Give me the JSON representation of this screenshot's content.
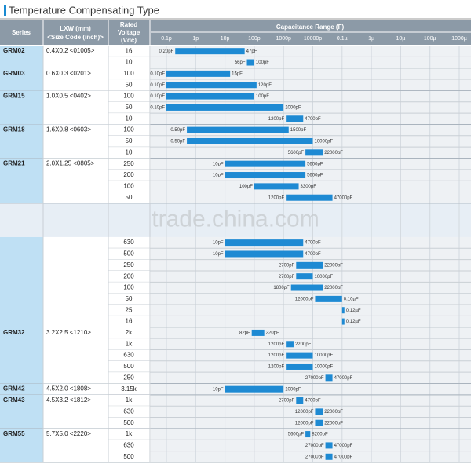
{
  "title": "Temperature Compensating Type",
  "watermark": "trade.china.com",
  "header": {
    "series": "Series",
    "lxw": "LXW (mm)",
    "size_code": "<Size Code (inch)>",
    "voltage": [
      "Rated",
      "Voltage",
      "(Vdc)"
    ],
    "capacitance": "Capacitance Range (F)"
  },
  "axis": {
    "ticks": [
      {
        "value": 0.1,
        "label": "0.1p"
      },
      {
        "value": 1,
        "label": "1p"
      },
      {
        "value": 10,
        "label": "10p"
      },
      {
        "value": 100,
        "label": "100p"
      },
      {
        "value": 1000,
        "label": "1000p"
      },
      {
        "value": 10000,
        "label": "10000p"
      },
      {
        "value": 100000,
        "label": "0.1µ"
      },
      {
        "value": 1000000,
        "label": "1µ"
      },
      {
        "value": 10000000,
        "label": "10µ"
      },
      {
        "value": 100000000,
        "label": "100µ"
      },
      {
        "value": 1000000000,
        "label": "1000µ"
      }
    ]
  },
  "groups": [
    {
      "series": "GRM02",
      "size": "0.4X0.2 <01005>",
      "rows": [
        {
          "voltage": "16",
          "min": 0.2,
          "max": 47,
          "min_label": "0.20pF",
          "max_label": "47pF"
        },
        {
          "voltage": "10",
          "min": 56,
          "max": 100,
          "min_label": "56pF",
          "max_label": "100pF"
        }
      ]
    },
    {
      "series": "GRM03",
      "size": "0.6X0.3 <0201>",
      "rows": [
        {
          "voltage": "100",
          "min": 0.1,
          "max": 15,
          "min_label": "0.10pF",
          "max_label": "15pF"
        },
        {
          "voltage": "50",
          "min": 0.1,
          "max": 120,
          "min_label": "0.10pF",
          "max_label": "120pF"
        }
      ]
    },
    {
      "series": "GRM15",
      "size": "1.0X0.5 <0402>",
      "rows": [
        {
          "voltage": "100",
          "min": 0.1,
          "max": 100,
          "min_label": "0.10pF",
          "max_label": "100pF"
        },
        {
          "voltage": "50",
          "min": 0.1,
          "max": 1000,
          "min_label": "0.10pF",
          "max_label": "1000pF"
        },
        {
          "voltage": "10",
          "min": 1200,
          "max": 4700,
          "min_label": "1200pF",
          "max_label": "4700pF"
        }
      ]
    },
    {
      "series": "GRM18",
      "size": "1.6X0.8 <0603>",
      "rows": [
        {
          "voltage": "100",
          "min": 0.5,
          "max": 1500,
          "min_label": "0.50pF",
          "max_label": "1500pF"
        },
        {
          "voltage": "50",
          "min": 0.5,
          "max": 10000,
          "min_label": "0.50pF",
          "max_label": "10000pF"
        },
        {
          "voltage": "10",
          "min": 5600,
          "max": 22000,
          "min_label": "5600pF",
          "max_label": "22000pF"
        }
      ]
    },
    {
      "series": "GRM21",
      "size": "2.0X1.25 <0805>",
      "rows": [
        {
          "voltage": "250",
          "min": 10,
          "max": 5600,
          "min_label": "10pF",
          "max_label": "5600pF"
        },
        {
          "voltage": "200",
          "min": 10,
          "max": 5600,
          "min_label": "10pF",
          "max_label": "5600pF"
        },
        {
          "voltage": "100",
          "min": 100,
          "max": 3300,
          "min_label": "100pF",
          "max_label": "3300pF"
        },
        {
          "voltage": "50",
          "min": 1200,
          "max": 47000,
          "min_label": "1200pF",
          "max_label": "47000pF"
        }
      ]
    },
    {
      "rows": [
        {
          "voltage": "630",
          "min": 10,
          "max": 4700,
          "min_label": "10pF",
          "max_label": "4700pF"
        },
        {
          "voltage": "500",
          "min": 10,
          "max": 4700,
          "min_label": "10pF",
          "max_label": "4700pF"
        },
        {
          "voltage": "250",
          "min": 2700,
          "max": 22000,
          "min_label": "2700pF",
          "max_label": "22000pF"
        },
        {
          "voltage": "200",
          "min": 2700,
          "max": 10000,
          "min_label": "2700pF",
          "max_label": "10000pF"
        },
        {
          "voltage": "100",
          "min": 1800,
          "max": 22000,
          "min_label": "1800pF",
          "max_label": "22000pF"
        },
        {
          "voltage": "50",
          "min": 12000,
          "max": 100000,
          "min_label": "12000pF",
          "max_label": "0.10µF"
        },
        {
          "voltage": "25",
          "min": 100000,
          "max": 120000,
          "max_label": "0.12µF"
        },
        {
          "voltage": "16",
          "min": 100000,
          "max": 120000,
          "max_label": "0.12µF"
        }
      ]
    },
    {
      "series": "GRM32",
      "size": "3.2X2.5 <1210>",
      "rows": [
        {
          "voltage": "2k",
          "min": 82,
          "max": 220,
          "min_label": "82pF",
          "max_label": "220pF"
        },
        {
          "voltage": "1k",
          "min": 1200,
          "max": 2200,
          "min_label": "1200pF",
          "max_label": "2200pF"
        },
        {
          "voltage": "630",
          "min": 1200,
          "max": 10000,
          "min_label": "1200pF",
          "max_label": "10000pF"
        },
        {
          "voltage": "500",
          "min": 1200,
          "max": 10000,
          "min_label": "1200pF",
          "max_label": "10000pF"
        },
        {
          "voltage": "250",
          "min": 27000,
          "max": 47000,
          "min_label": "27000pF",
          "max_label": "47000pF"
        }
      ]
    },
    {
      "series": "GRM42",
      "size": "4.5X2.0 <1808>",
      "rows": [
        {
          "voltage": "3.15k",
          "min": 10,
          "max": 1000,
          "min_label": "10pF",
          "max_label": "1000pF"
        }
      ]
    },
    {
      "series": "GRM43",
      "size": "4.5X3.2 <1812>",
      "rows": [
        {
          "voltage": "1k",
          "min": 2700,
          "max": 4700,
          "min_label": "2700pF",
          "max_label": "4700pF"
        },
        {
          "voltage": "630",
          "min": 12000,
          "max": 22000,
          "min_label": "12000pF",
          "max_label": "22000pF"
        },
        {
          "voltage": "500",
          "min": 12000,
          "max": 22000,
          "min_label": "12000pF",
          "max_label": "22000pF"
        }
      ]
    },
    {
      "series": "GRM55",
      "size": "5.7X5.0 <2220>",
      "rows": [
        {
          "voltage": "1k",
          "min": 5600,
          "max": 8200,
          "min_label": "5600pF",
          "max_label": "8200pF"
        },
        {
          "voltage": "630",
          "min": 27000,
          "max": 47000,
          "min_label": "27000pF",
          "max_label": "47000pF"
        },
        {
          "voltage": "500",
          "min": 27000,
          "max": 47000,
          "min_label": "27000pF",
          "max_label": "47000pF"
        }
      ]
    }
  ]
}
